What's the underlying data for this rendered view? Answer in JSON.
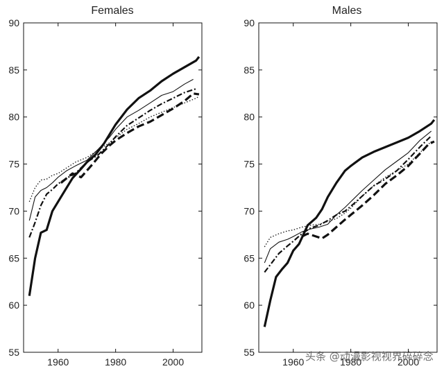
{
  "watermark": "头条 @动漫影视视界碎碎念",
  "chart_data": [
    {
      "type": "line",
      "title": "Females",
      "xlim": [
        1948,
        2010
      ],
      "ylim": [
        55,
        90
      ],
      "xticks": [
        1960,
        1980,
        2000
      ],
      "yticks": [
        55,
        60,
        65,
        70,
        75,
        80,
        85,
        90
      ],
      "grid": false,
      "series": [
        {
          "style": "solid-thick",
          "x": [
            1950,
            1952,
            1954,
            1956,
            1958,
            1960,
            1962,
            1965,
            1968,
            1970,
            1973,
            1976,
            1980,
            1984,
            1988,
            1992,
            1996,
            2000,
            2004,
            2008,
            2009
          ],
          "y": [
            61,
            65,
            67.7,
            68,
            70,
            71,
            72,
            73.5,
            74.5,
            75.2,
            76,
            77.2,
            79.2,
            80.8,
            82,
            82.8,
            83.8,
            84.6,
            85.3,
            86,
            86.4
          ]
        },
        {
          "style": "solid-thin",
          "x": [
            1950,
            1952,
            1954,
            1956,
            1958,
            1960,
            1963,
            1966,
            1970,
            1974,
            1978,
            1980,
            1984,
            1988,
            1992,
            1996,
            2000,
            2004,
            2007
          ],
          "y": [
            69,
            71.5,
            72.2,
            72.5,
            73,
            73.6,
            74.3,
            74.8,
            75.4,
            76.6,
            77.9,
            78.7,
            80,
            80.7,
            81.5,
            82.3,
            82.7,
            83.5,
            84
          ]
        },
        {
          "style": "dotted",
          "x": [
            1950,
            1952,
            1954,
            1956,
            1958,
            1960,
            1963,
            1966,
            1970,
            1974,
            1978,
            1980,
            1984,
            1988,
            1992,
            1996,
            2000,
            2004,
            2008,
            2009
          ],
          "y": [
            71,
            72.5,
            73.3,
            73.4,
            73.8,
            74,
            74.6,
            75.2,
            75.7,
            76.5,
            77.3,
            77.8,
            78.7,
            79.3,
            80,
            80.5,
            81,
            81.5,
            82,
            82.2
          ]
        },
        {
          "style": "dash-dot",
          "x": [
            1950,
            1952,
            1954,
            1956,
            1958,
            1960,
            1963,
            1966,
            1970,
            1974,
            1978,
            1980,
            1984,
            1988,
            1992,
            1996,
            2000,
            2004,
            2008
          ],
          "y": [
            67.2,
            68.8,
            70.6,
            71.8,
            72.3,
            72.9,
            73.5,
            74,
            75.2,
            76,
            77.2,
            77.9,
            79.1,
            79.9,
            80.7,
            81.4,
            82,
            82.6,
            83
          ]
        },
        {
          "style": "dashed-thick",
          "x": [
            1961,
            1963,
            1965,
            1968,
            1970,
            1972,
            1975,
            1978,
            1980,
            1984,
            1988,
            1992,
            1996,
            2000,
            2004,
            2007,
            2009
          ],
          "y": [
            73,
            73.5,
            74,
            73.6,
            74.3,
            75,
            76.1,
            77,
            77.5,
            78.3,
            79,
            79.5,
            80.2,
            80.9,
            81.7,
            82.5,
            82.4
          ]
        }
      ]
    },
    {
      "type": "line",
      "title": "Males",
      "xlim": [
        1948,
        2010
      ],
      "ylim": [
        55,
        90
      ],
      "xticks": [
        1960,
        1980,
        2000
      ],
      "yticks": [
        55,
        60,
        65,
        70,
        75,
        80,
        85,
        90
      ],
      "grid": false,
      "series": [
        {
          "style": "solid-thick",
          "x": [
            1950,
            1952,
            1954,
            1956,
            1958,
            1960,
            1962,
            1965,
            1968,
            1970,
            1972,
            1975,
            1978,
            1980,
            1984,
            1988,
            1992,
            1996,
            2000,
            2004,
            2008,
            2009
          ],
          "y": [
            57.7,
            60.5,
            63,
            63.8,
            64.5,
            65.8,
            66.5,
            68.5,
            69.3,
            70.2,
            71.5,
            73,
            74.3,
            74.8,
            75.7,
            76.3,
            76.8,
            77.3,
            77.8,
            78.5,
            79.3,
            79.7
          ]
        },
        {
          "style": "solid-thin",
          "x": [
            1950,
            1952,
            1955,
            1958,
            1960,
            1963,
            1966,
            1969,
            1972,
            1975,
            1978,
            1980,
            1984,
            1988,
            1992,
            1996,
            2000,
            2004,
            2008
          ],
          "y": [
            64.5,
            66,
            66.7,
            67,
            67.3,
            67.8,
            68.1,
            68.3,
            68.6,
            69.6,
            70.4,
            71,
            72.2,
            73.3,
            74.4,
            75.3,
            76.2,
            77.5,
            78.5
          ]
        },
        {
          "style": "dotted",
          "x": [
            1950,
            1952,
            1955,
            1958,
            1960,
            1963,
            1966,
            1969,
            1972,
            1975,
            1978,
            1980,
            1984,
            1988,
            1992,
            1996,
            2000,
            2004,
            2008
          ],
          "y": [
            66.2,
            67.2,
            67.6,
            67.9,
            68,
            68.3,
            68.5,
            68.6,
            68.9,
            69.2,
            69.8,
            70.3,
            71.6,
            72.7,
            73.6,
            74.3,
            75,
            76.2,
            77.4
          ]
        },
        {
          "style": "dash-dot",
          "x": [
            1950,
            1952,
            1955,
            1958,
            1960,
            1963,
            1966,
            1969,
            1972,
            1975,
            1978,
            1980,
            1984,
            1988,
            1992,
            1996,
            2000,
            2004,
            2008
          ],
          "y": [
            63.5,
            64.3,
            65.5,
            66.3,
            66.8,
            67.6,
            68.2,
            68.5,
            69,
            69.6,
            70,
            70.5,
            71.6,
            72.7,
            73.4,
            74.3,
            75.5,
            76.8,
            78
          ]
        },
        {
          "style": "dashed-thick",
          "x": [
            1963,
            1965,
            1968,
            1970,
            1972,
            1975,
            1978,
            1980,
            1984,
            1988,
            1992,
            1996,
            2000,
            2004,
            2007,
            2009
          ],
          "y": [
            67.3,
            67.6,
            67.3,
            67.1,
            67.5,
            68.3,
            69.1,
            69.6,
            70.6,
            71.7,
            72.9,
            73.8,
            74.8,
            76.1,
            77.1,
            77.4
          ]
        }
      ]
    }
  ]
}
